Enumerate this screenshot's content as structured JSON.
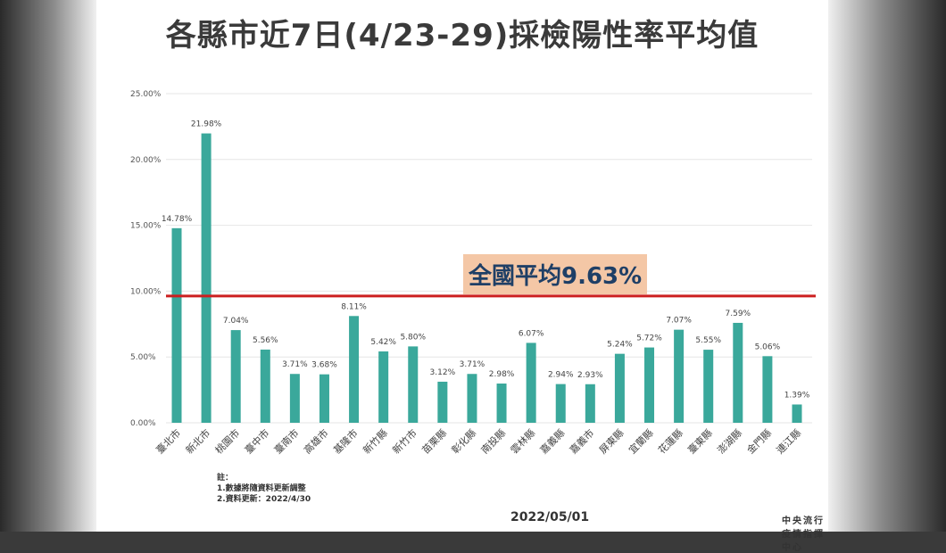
{
  "title": "各縣市近7日(4/23-29)採檢陽性率平均值",
  "average_label": "全國平均9.63%",
  "notes": {
    "heading": "註：",
    "line1": "1.數據將隨資料更新調整",
    "line2": "2.資料更新：2022/4/30"
  },
  "date": "2022/05/01",
  "source": "中央流行疫情指揮中心",
  "colors": {
    "bar": "#3aa89b",
    "average_line": "#cc1f1f",
    "grid": "#e6e6e6"
  },
  "chart_data": {
    "type": "bar",
    "categories": [
      "臺北市",
      "新北市",
      "桃園市",
      "臺中市",
      "臺南市",
      "高雄市",
      "基隆市",
      "新竹縣",
      "新竹市",
      "苗栗縣",
      "彰化縣",
      "南投縣",
      "雲林縣",
      "嘉義縣",
      "嘉義市",
      "屏東縣",
      "宜蘭縣",
      "花蓮縣",
      "臺東縣",
      "澎湖縣",
      "金門縣",
      "連江縣"
    ],
    "values": [
      14.78,
      21.98,
      7.04,
      5.56,
      3.71,
      3.68,
      8.11,
      5.42,
      5.8,
      3.12,
      3.71,
      2.98,
      6.07,
      2.94,
      2.93,
      5.24,
      5.72,
      7.07,
      5.55,
      7.59,
      5.06,
      1.39
    ],
    "value_labels": [
      "14.78%",
      "21.98%",
      "7.04%",
      "5.56%",
      "3.71%",
      "3.68%",
      "8.11%",
      "5.42%",
      "5.80%",
      "3.12%",
      "3.71%",
      "2.98%",
      "6.07%",
      "2.94%",
      "2.93%",
      "5.24%",
      "5.72%",
      "7.07%",
      "5.55%",
      "7.59%",
      "5.06%",
      "1.39%"
    ],
    "ylim": [
      0,
      25
    ],
    "yticks": [
      0,
      5,
      10,
      15,
      20,
      25
    ],
    "ytick_labels": [
      "0.00%",
      "5.00%",
      "10.00%",
      "15.00%",
      "20.00%",
      "25.00%"
    ],
    "reference_line": 9.63,
    "grid": true
  }
}
